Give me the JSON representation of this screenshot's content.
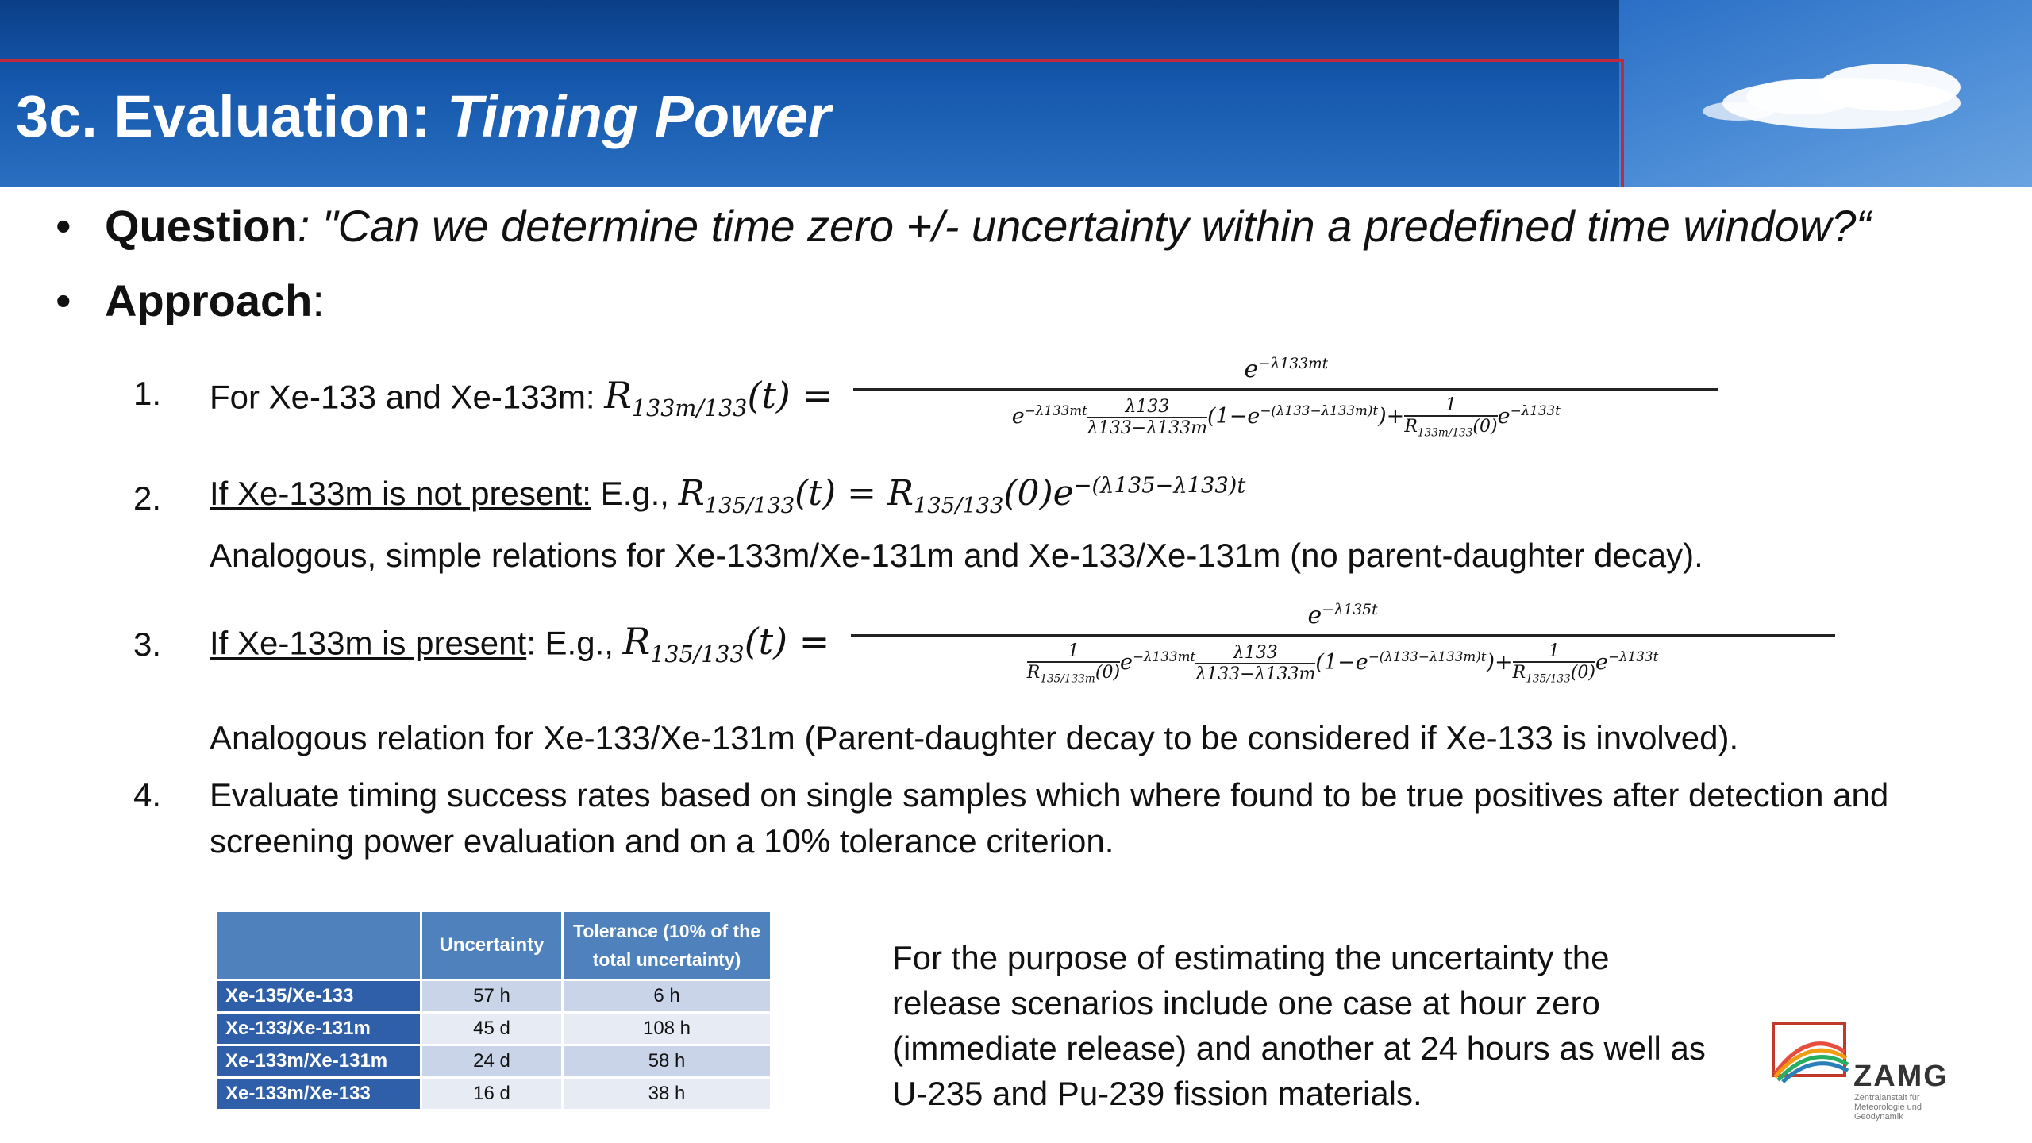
{
  "header": {
    "title_prefix": "3c. Evaluation: ",
    "title_italic": "Timing Power"
  },
  "bullets": [
    {
      "label": "Question",
      "text": ": \"Can we determine time zero +/- uncertainty within a predefined time window?“"
    },
    {
      "label": "Approach",
      "text": ":"
    }
  ],
  "items": {
    "i1": {
      "num": "1.",
      "text": "For Xe-133 and Xe-133m: "
    },
    "i2": {
      "num": "2.",
      "underline": "If Xe-133m is not present:",
      "text": " E.g., ",
      "sub_text": "Analogous, simple relations for Xe-133m/Xe-131m and Xe-133/Xe-131m (no parent-daughter decay)."
    },
    "i3": {
      "num": "3.",
      "underline": "If Xe-133m is present",
      "text": ": E.g., ",
      "sub_text": "Analogous relation for  Xe-133/Xe-131m (Parent-daughter decay to be considered if Xe-133 is involved)."
    },
    "i4": {
      "num": "4.",
      "line1": "Evaluate timing success rates based on single samples which where found to be true positives after detection and",
      "line2": "screening power evaluation and on a 10% tolerance criterion."
    }
  },
  "table": {
    "headers": [
      "",
      "Uncertainty",
      "Tolerance (10% of the total uncertainty)"
    ],
    "rows": [
      {
        "ratio": "Xe-135/Xe-133",
        "uncertainty": "57 h",
        "tolerance": "6 h"
      },
      {
        "ratio": "Xe-133/Xe-131m",
        "uncertainty": "45 d",
        "tolerance": "108 h"
      },
      {
        "ratio": "Xe-133m/Xe-131m",
        "uncertainty": "24 d",
        "tolerance": "58 h"
      },
      {
        "ratio": "Xe-133m/Xe-133",
        "uncertainty": "16 d",
        "tolerance": "38 h"
      }
    ]
  },
  "note": "For the purpose of estimating the uncertainty the release scenarios include one case at hour zero (immediate release) and another at 24 hours as well as U-235 and Pu-239 fission materials.",
  "logo": {
    "name": "ZAMG",
    "subtitle": "Zentralanstalt für Meteorologie und Geodynamik"
  },
  "colors": {
    "header_blue": "#1558ad",
    "table_header": "#4f81bd",
    "table_rowhead": "#2e5fa8",
    "accent_red": "#c02a3a"
  }
}
